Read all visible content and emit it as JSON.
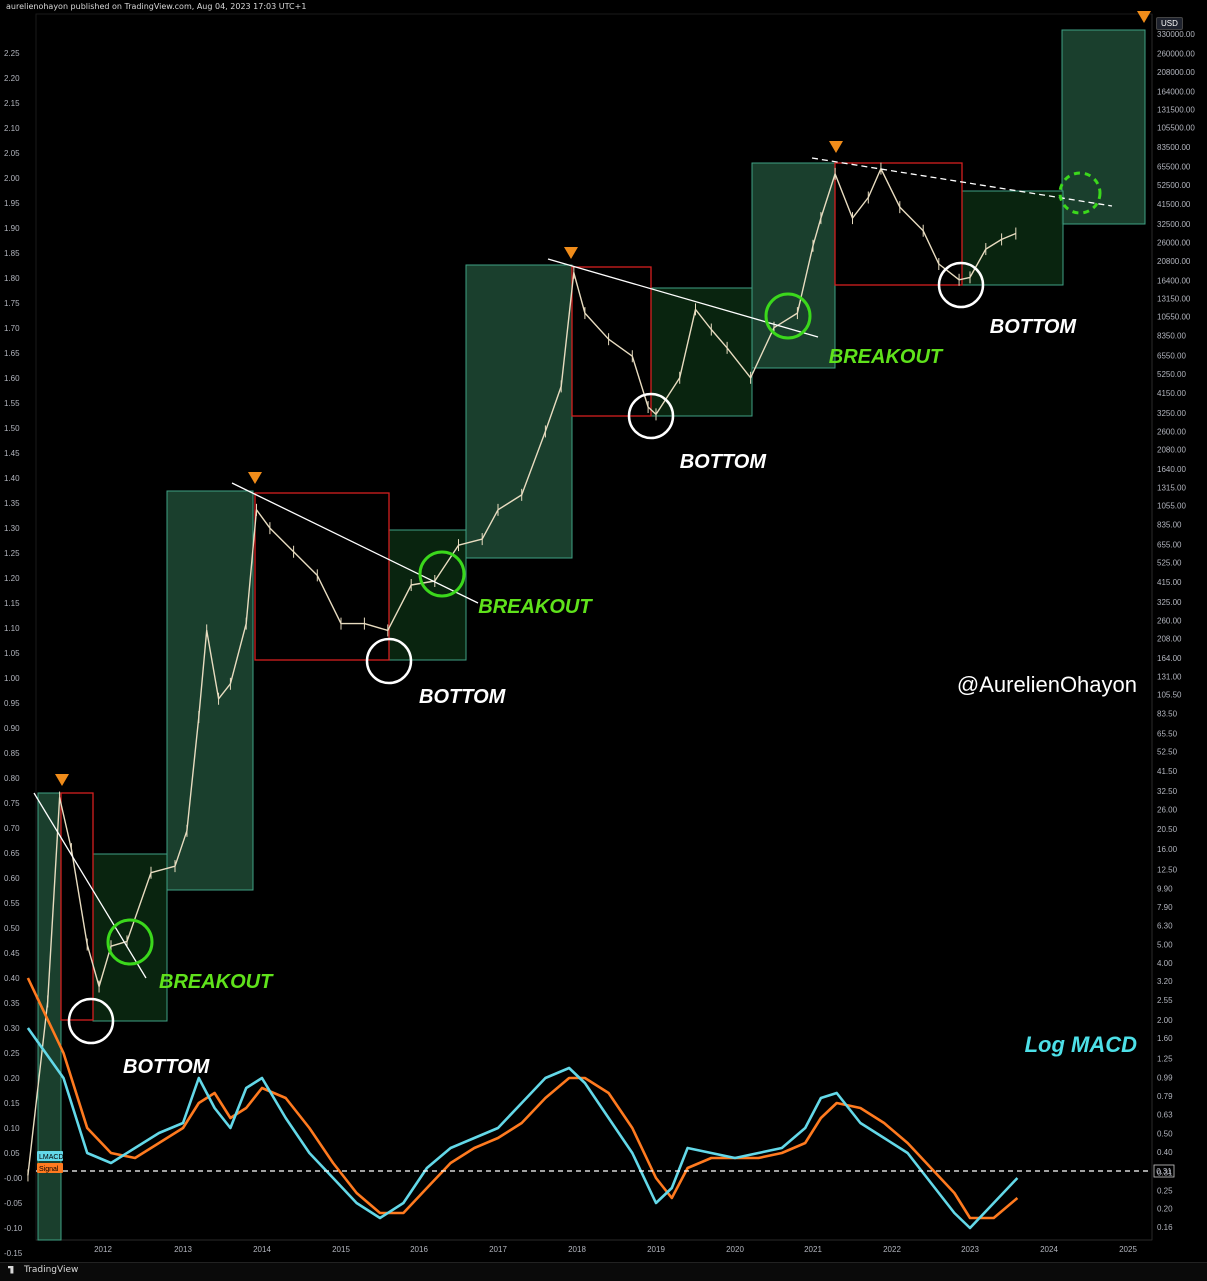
{
  "header": {
    "text": "aurelienohayon published on TradingView.com, Aug 04, 2023 17:03 UTC+1"
  },
  "footer": {
    "logo_text": "TradingView"
  },
  "price_axis": {
    "unit_badge": "USD"
  },
  "chart_data": {
    "type": "line",
    "title": "",
    "watermark": "@AurelienOhayon",
    "panel_label": "Log MACD",
    "years": [
      "2012",
      "2013",
      "2014",
      "2015",
      "2016",
      "2017",
      "2018",
      "2019",
      "2020",
      "2021",
      "2022",
      "2023",
      "2024",
      "2025"
    ],
    "left_axis_ticks": [
      "2.25",
      "2.20",
      "2.15",
      "2.10",
      "2.05",
      "2.00",
      "1.95",
      "1.90",
      "1.85",
      "1.80",
      "1.75",
      "1.70",
      "1.65",
      "1.60",
      "1.55",
      "1.50",
      "1.45",
      "1.40",
      "1.35",
      "1.30",
      "1.25",
      "1.20",
      "1.15",
      "1.10",
      "1.05",
      "1.00",
      "0.95",
      "0.90",
      "0.85",
      "0.80",
      "0.75",
      "0.70",
      "0.65",
      "0.60",
      "0.55",
      "0.50",
      "0.45",
      "0.40",
      "0.35",
      "0.30",
      "0.25",
      "0.20",
      "0.15",
      "0.10",
      "0.05",
      "-0.00",
      "-0.05",
      "-0.10",
      "-0.15"
    ],
    "right_axis_ticks": [
      "330000.00",
      "260000.00",
      "208000.00",
      "164000.00",
      "131500.00",
      "105500.00",
      "83500.00",
      "65500.00",
      "52500.00",
      "41500.00",
      "32500.00",
      "26000.00",
      "20800.00",
      "16400.00",
      "13150.00",
      "10550.00",
      "8350.00",
      "6550.00",
      "5250.00",
      "4150.00",
      "3250.00",
      "2600.00",
      "2080.00",
      "1640.00",
      "1315.00",
      "1055.00",
      "835.00",
      "655.00",
      "525.00",
      "415.00",
      "325.00",
      "260.00",
      "208.00",
      "164.00",
      "131.00",
      "105.50",
      "83.50",
      "65.50",
      "52.50",
      "41.50",
      "32.50",
      "26.00",
      "20.50",
      "16.00",
      "12.50",
      "9.90",
      "7.90",
      "6.30",
      "5.00",
      "4.00",
      "3.20",
      "2.55",
      "2.00",
      "1.60",
      "1.25",
      "0.99",
      "0.79",
      "0.63",
      "0.50",
      "0.40",
      "0.31",
      "0.25",
      "0.20",
      "0.16"
    ],
    "price_series": {
      "name": "",
      "x": [
        2011.05,
        2011.3,
        2011.45,
        2011.6,
        2011.8,
        2011.95,
        2012.1,
        2012.3,
        2012.6,
        2012.9,
        2013.05,
        2013.2,
        2013.3,
        2013.45,
        2013.6,
        2013.8,
        2013.93,
        2014.1,
        2014.4,
        2014.7,
        2015.0,
        2015.3,
        2015.6,
        2015.9,
        2016.2,
        2016.5,
        2016.8,
        2017.0,
        2017.3,
        2017.6,
        2017.8,
        2017.96,
        2018.1,
        2018.4,
        2018.7,
        2018.9,
        2019.0,
        2019.3,
        2019.5,
        2019.7,
        2019.9,
        2020.2,
        2020.5,
        2020.8,
        2021.0,
        2021.1,
        2021.28,
        2021.5,
        2021.7,
        2021.86,
        2022.1,
        2022.4,
        2022.6,
        2022.86,
        2023.0,
        2023.2,
        2023.4,
        2023.58
      ],
      "y": [
        0.3,
        2.5,
        30,
        16,
        5,
        3,
        4.9,
        5.2,
        12,
        13,
        20,
        80,
        230,
        100,
        120,
        250,
        1000,
        800,
        600,
        450,
        250,
        250,
        230,
        400,
        420,
        650,
        700,
        1000,
        1200,
        2600,
        4500,
        18000,
        11000,
        8000,
        6500,
        3500,
        3200,
        5000,
        11500,
        9000,
        7200,
        5000,
        9200,
        11000,
        25000,
        35000,
        60000,
        35000,
        45000,
        64000,
        40000,
        30000,
        20000,
        16500,
        17000,
        24000,
        27000,
        29000
      ]
    },
    "macd_series": {
      "name": "LMACD",
      "x": [
        2011.05,
        2011.5,
        2011.8,
        2012.1,
        2012.4,
        2012.7,
        2013.0,
        2013.2,
        2013.4,
        2013.6,
        2013.8,
        2014.0,
        2014.3,
        2014.6,
        2014.9,
        2015.2,
        2015.5,
        2015.8,
        2016.1,
        2016.4,
        2016.7,
        2017.0,
        2017.3,
        2017.6,
        2017.9,
        2018.1,
        2018.4,
        2018.7,
        2019.0,
        2019.2,
        2019.4,
        2019.7,
        2020.0,
        2020.3,
        2020.6,
        2020.9,
        2021.1,
        2021.3,
        2021.6,
        2021.9,
        2022.2,
        2022.5,
        2022.8,
        2023.0,
        2023.3,
        2023.6
      ],
      "y": [
        0.3,
        0.2,
        0.05,
        0.03,
        0.06,
        0.09,
        0.11,
        0.2,
        0.14,
        0.1,
        0.18,
        0.2,
        0.12,
        0.05,
        0.0,
        -0.05,
        -0.08,
        -0.05,
        0.02,
        0.06,
        0.08,
        0.1,
        0.15,
        0.2,
        0.22,
        0.19,
        0.12,
        0.05,
        -0.05,
        -0.02,
        0.06,
        0.05,
        0.04,
        0.05,
        0.06,
        0.1,
        0.16,
        0.17,
        0.11,
        0.08,
        0.05,
        -0.01,
        -0.07,
        -0.1,
        -0.05,
        0.0
      ]
    },
    "signal_series": {
      "name": "Signal",
      "x": [
        2011.05,
        2011.5,
        2011.8,
        2012.1,
        2012.4,
        2012.7,
        2013.0,
        2013.2,
        2013.4,
        2013.6,
        2013.8,
        2014.0,
        2014.3,
        2014.6,
        2014.9,
        2015.2,
        2015.5,
        2015.8,
        2016.1,
        2016.4,
        2016.7,
        2017.0,
        2017.3,
        2017.6,
        2017.9,
        2018.1,
        2018.4,
        2018.7,
        2019.0,
        2019.2,
        2019.4,
        2019.7,
        2020.0,
        2020.3,
        2020.6,
        2020.9,
        2021.1,
        2021.3,
        2021.6,
        2021.9,
        2022.2,
        2022.5,
        2022.8,
        2023.0,
        2023.3,
        2023.6
      ],
      "y": [
        0.4,
        0.25,
        0.1,
        0.05,
        0.04,
        0.07,
        0.1,
        0.15,
        0.17,
        0.12,
        0.14,
        0.18,
        0.16,
        0.1,
        0.03,
        -0.03,
        -0.07,
        -0.07,
        -0.02,
        0.03,
        0.06,
        0.08,
        0.11,
        0.16,
        0.2,
        0.2,
        0.17,
        0.1,
        0.0,
        -0.04,
        0.02,
        0.04,
        0.04,
        0.04,
        0.05,
        0.07,
        0.12,
        0.15,
        0.14,
        0.11,
        0.07,
        0.02,
        -0.03,
        -0.08,
        -0.08,
        -0.04
      ]
    },
    "hline": {
      "value": "0.31"
    },
    "annotations": [
      {
        "text": "BREAKOUT",
        "color": "#5fe21b",
        "x": 2012.7,
        "y": 0.38
      },
      {
        "text": "BOTTOM",
        "color": "#ffffff",
        "x": 2012.25,
        "y": 0.21
      },
      {
        "text": "BREAKOUT",
        "color": "#5fe21b",
        "x": 2016.75,
        "y": 1.13
      },
      {
        "text": "BOTTOM",
        "color": "#ffffff",
        "x": 2016.0,
        "y": 0.95
      },
      {
        "text": "BOTTOM",
        "color": "#ffffff",
        "x": 2019.3,
        "y": 1.42
      },
      {
        "text": "BREAKOUT",
        "color": "#5fe21b",
        "x": 2021.2,
        "y": 1.63
      },
      {
        "text": "BOTTOM",
        "color": "#ffffff",
        "x": 2023.25,
        "y": 1.69
      }
    ],
    "colors": {
      "price": "#e8dcc0",
      "macd": "#63d8e8",
      "signal": "#ff7a1f",
      "green_box": "#1e4a35",
      "green_box_border": "#3fa084",
      "dark_box": "#0b2a12",
      "red_box_border": "#d42020",
      "trend": "#ffffff",
      "circle_green": "#3bd81c",
      "marker": "#f08c1a",
      "macd_label": "#4de0e8"
    },
    "legend": [
      {
        "name": "LMACD",
        "color": "#63d8e8"
      },
      {
        "name": "Signal",
        "color": "#ff7a1f"
      }
    ]
  }
}
